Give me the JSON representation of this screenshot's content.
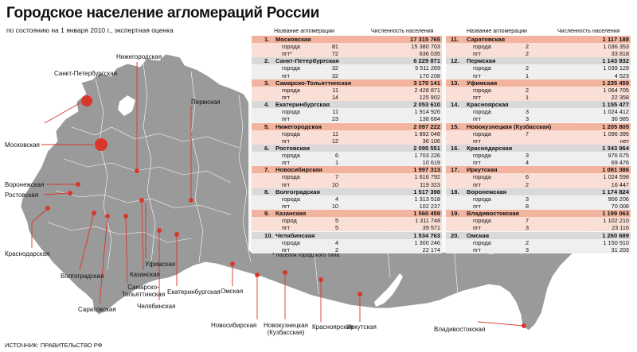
{
  "title": "Городское население агломераций России",
  "subtitle": "по состоянию на 1 января 2010 г., экспертная оценка",
  "source": "ИСТОЧНИК: ПРАВИТЕЛЬСТВО РФ",
  "note": "* поселок городского типа",
  "colors": {
    "map_fill": "#9a9a9a",
    "map_border": "#ffffff",
    "marker": "#d8372a",
    "accent_row": "#f2b49f",
    "accent_sub": "#f9dfd5",
    "gray_row": "#d9d9d9",
    "gray_sub": "#efefef"
  },
  "table": {
    "header": {
      "name": "Название агломерации",
      "population": "Численность населения"
    },
    "left": [
      {
        "num": "1.",
        "name": "Московская",
        "total": "17 315 765",
        "cities_label": "города",
        "cities": "81",
        "cities_pop": "15 380 703",
        "pgt_label": "пгт*",
        "pgt": "72",
        "pgt_pop": "636 035"
      },
      {
        "num": "2.",
        "name": "Санкт-Петербургская",
        "total": "6 229 871",
        "cities_label": "города",
        "cities": "32",
        "cities_pop": "5 511 269",
        "pgt_label": "пгт",
        "pgt": "32",
        "pgt_pop": "170 208"
      },
      {
        "num": "3.",
        "name": "Самарско-Тольяттинская",
        "total": "3 170 141",
        "cities_label": "города",
        "cities": "11",
        "cities_pop": "2 428 871",
        "pgt_label": "пгт",
        "pgt": "14",
        "pgt_pop": "125 902"
      },
      {
        "num": "4.",
        "name": "Екатеринбургская",
        "total": "2 053 610",
        "cities_label": "города",
        "cities": "11",
        "cities_pop": "1 914 926",
        "pgt_label": "пгт",
        "pgt": "23",
        "pgt_pop": "138 684"
      },
      {
        "num": "5.",
        "name": "Нижегородская",
        "total": "2 097 222",
        "cities_label": "города",
        "cities": "11",
        "cities_pop": "1 892 048",
        "pgt_label": "пгт",
        "pgt": "12",
        "pgt_pop": "36 106"
      },
      {
        "num": "6.",
        "name": "Ростовская",
        "total": "2 095 551",
        "cities_label": "города",
        "cities": "6",
        "cities_pop": "1 703 226",
        "pgt_label": "пгт",
        "pgt": "1",
        "pgt_pop": "10 619"
      },
      {
        "num": "7.",
        "name": "Новосибирская",
        "total": "1 997 313",
        "cities_label": "города",
        "cities": "7",
        "cities_pop": "1 616 792",
        "pgt_label": "пгт",
        "pgt": "10",
        "pgt_pop": "119 323"
      },
      {
        "num": "8.",
        "name": "Волгоградская",
        "total": "1 517 398",
        "cities_label": "города",
        "cities": "4",
        "cities_pop": "1 313 518",
        "pgt_label": "пгт",
        "pgt": "10",
        "pgt_pop": "102 237"
      },
      {
        "num": "9.",
        "name": "Казанская",
        "total": "1 560 459",
        "cities_label": "город",
        "cities": "5",
        "cities_pop": "1 311 748",
        "pgt_label": "пгт",
        "pgt": "5",
        "pgt_pop": "39 571"
      },
      {
        "num": "10.",
        "name": "Челябинская",
        "total": "1 534 763",
        "cities_label": "города",
        "cities": "4",
        "cities_pop": "1 300 246",
        "pgt_label": "пгт",
        "pgt": "2",
        "pgt_pop": "22 174"
      }
    ],
    "right": [
      {
        "num": "11.",
        "name": "Саратовская",
        "total": "1 117 188",
        "cities_label": "города",
        "cities": "2",
        "cities_pop": "1 036 353",
        "pgt_label": "пгт",
        "pgt": "2",
        "pgt_pop": "33 818"
      },
      {
        "num": "12.",
        "name": "Пермская",
        "total": "1 143 832",
        "cities_label": "города",
        "cities": "2",
        "cities_pop": "1 039 129",
        "pgt_label": "пгт",
        "pgt": "1",
        "pgt_pop": "4 523"
      },
      {
        "num": "13.",
        "name": "Уфимская",
        "total": "1 235 459",
        "cities_label": "города",
        "cities": "2",
        "cities_pop": "1 064 705",
        "pgt_label": "пгт",
        "pgt": "1",
        "pgt_pop": "22 358"
      },
      {
        "num": "14.",
        "name": "Красноярская",
        "total": "1 155 477",
        "cities_label": "города",
        "cities": "3",
        "cities_pop": "1 024 412",
        "pgt_label": "пгт",
        "pgt": "3",
        "pgt_pop": "36 985"
      },
      {
        "num": "15.",
        "name": "Новокузнецкая (Кузбасская)",
        "total": "1 205 805",
        "cities_label": "города",
        "cities": "7",
        "cities_pop": "1 096 395",
        "pgt_label": "пгт",
        "pgt": "",
        "pgt_pop": "нет"
      },
      {
        "num": "16.",
        "name": "Краснодарская",
        "total": "1 343 964",
        "cities_label": "города",
        "cities": "3",
        "cities_pop": "976 675",
        "pgt_label": "пгт",
        "pgt": "4",
        "pgt_pop": "69 476"
      },
      {
        "num": "17.",
        "name": "Иркутская",
        "total": "1 081 386",
        "cities_label": "города",
        "cities": "6",
        "cities_pop": "1 024 598",
        "pgt_label": "пгт",
        "pgt": "2",
        "pgt_pop": "16 447"
      },
      {
        "num": "18.",
        "name": "Воронежская",
        "total": "1 174 824",
        "cities_label": "города",
        "cities": "3",
        "cities_pop": "906 206",
        "pgt_label": "пгт",
        "pgt": "8",
        "pgt_pop": "70 008"
      },
      {
        "num": "19.",
        "name": "Владивостокская",
        "total": "1 199 063",
        "cities_label": "города",
        "cities": "7",
        "cities_pop": "1 102 210",
        "pgt_label": "пгт",
        "pgt": "3",
        "pgt_pop": "23 116"
      },
      {
        "num": "20.",
        "name": "Омская",
        "total": "1 260 689",
        "cities_label": "города",
        "cities": "2",
        "cities_pop": "1 150 910",
        "pgt_label": "пгт",
        "pgt": "3",
        "pgt_pop": "31 203"
      }
    ]
  },
  "map_labels": {
    "nizhny": "Нижегородская",
    "spb": "Санкт-Петербургская",
    "moscow": "Московская",
    "perm": "Пермская",
    "voronezh": "Воронежская",
    "rostov": "Ростовская",
    "krasnodar": "Краснодарская",
    "volgograd": "Волгоградская",
    "saratov": "Саратовская",
    "samara": "Самарско-Тольяттинская",
    "kazan": "Казанская",
    "ufa": "Уфимская",
    "chelyabinsk": "Челябинская",
    "ekb": "Екатеринбургская",
    "omsk": "Омская",
    "novosib": "Новосибирская",
    "kuzbass": "Новокузнецкая (Кузбасская)",
    "krasnoyarsk": "Красноярская",
    "irkutsk": "Иркутская",
    "vladivostok": "Владивостокская"
  }
}
